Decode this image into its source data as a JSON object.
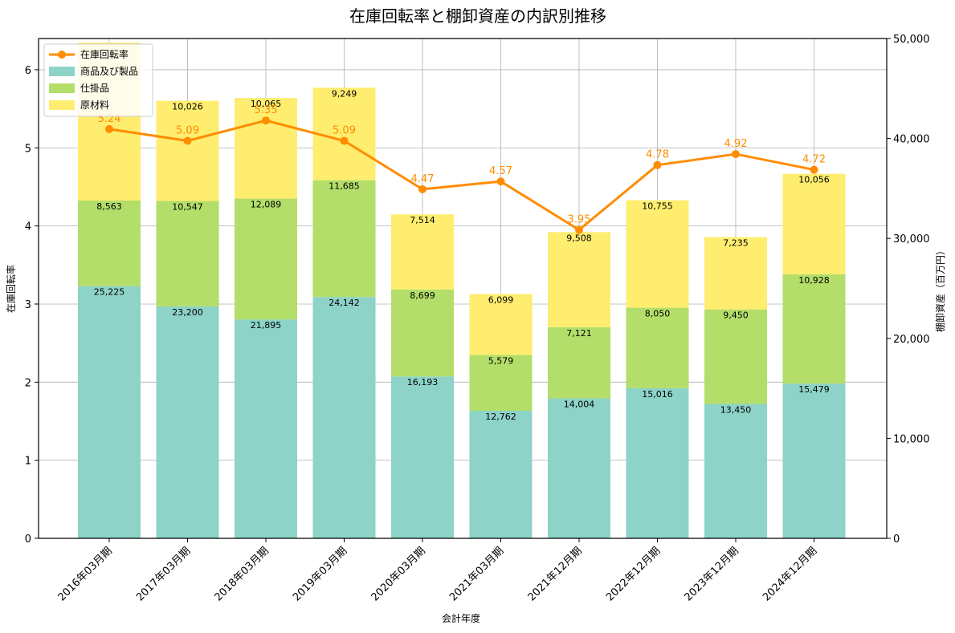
{
  "chart_data": {
    "type": "bar",
    "title": "在庫回転率と棚卸資産の内訳別推移",
    "xlabel": "会計年度",
    "ylabel_left": "在庫回転率",
    "ylabel_right": "棚卸資産（百万円）",
    "categories": [
      "2016年03月期",
      "2017年03月期",
      "2018年03月期",
      "2019年03月期",
      "2020年03月期",
      "2021年03月期",
      "2021年12月期",
      "2022年12月期",
      "2023年12月期",
      "2024年12月期"
    ],
    "ylim_left": [
      0,
      6.4
    ],
    "ylim_right": [
      0,
      50000
    ],
    "left_ticks": [
      "0",
      "1",
      "2",
      "3",
      "4",
      "5",
      "6"
    ],
    "right_ticks": [
      "0",
      "10,000",
      "20,000",
      "30,000",
      "40,000",
      "50,000"
    ],
    "grid": true,
    "legend_position": "top-left",
    "series": [
      {
        "name": "商品及び製品",
        "kind": "bar",
        "axis": "right",
        "color": "#8dd3c7",
        "values": [
          25225,
          23200,
          21895,
          24142,
          16193,
          12762,
          14004,
          15016,
          13450,
          15479
        ],
        "labels": [
          "25,225",
          "23,200",
          "21,895",
          "24,142",
          "16,193",
          "12,762",
          "14,004",
          "15,016",
          "13,450",
          "15,479"
        ]
      },
      {
        "name": "仕掛品",
        "kind": "bar",
        "axis": "right",
        "color": "#b3de69",
        "values": [
          8563,
          10547,
          12089,
          11685,
          8699,
          5579,
          7121,
          8050,
          9450,
          10928
        ],
        "labels": [
          "8,563",
          "10,547",
          "12,089",
          "11,685",
          "8,699",
          "5,579",
          "7,121",
          "8,050",
          "9,450",
          "10,928"
        ]
      },
      {
        "name": "原材料",
        "kind": "bar",
        "axis": "right",
        "color": "#ffed6f",
        "values": [
          15800,
          10026,
          10065,
          9249,
          7514,
          6099,
          9508,
          10755,
          7235,
          10056
        ],
        "labels": [
          "",
          "10,026",
          "10,065",
          "9,249",
          "7,514",
          "6,099",
          "9,508",
          "10,755",
          "7,235",
          "10,056"
        ]
      },
      {
        "name": "在庫回転率",
        "kind": "line",
        "axis": "left",
        "color": "#ff8c00",
        "values": [
          5.24,
          5.09,
          5.35,
          5.09,
          4.47,
          4.57,
          3.95,
          4.78,
          4.92,
          4.72
        ],
        "labels": [
          "5.24",
          "5.09",
          "5.35",
          "5.09",
          "4.47",
          "4.57",
          "3.95",
          "4.78",
          "4.92",
          "4.72"
        ]
      }
    ]
  }
}
